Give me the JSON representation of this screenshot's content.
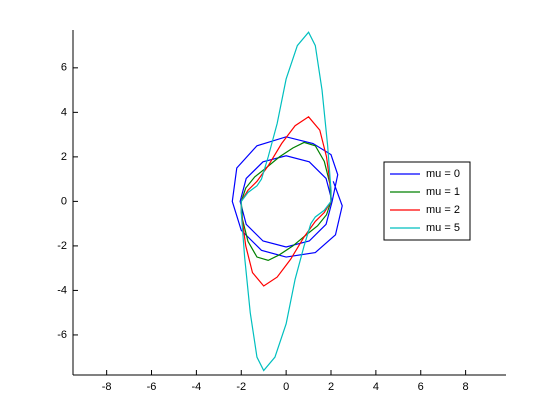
{
  "chart_data": {
    "type": "line",
    "xlim": [
      -9.5,
      9.8
    ],
    "ylim": [
      -7.8,
      7.7
    ],
    "xticks": [
      -8,
      -6,
      -4,
      -2,
      0,
      2,
      4,
      6,
      8
    ],
    "yticks": [
      -6,
      -4,
      -2,
      0,
      2,
      4,
      6
    ],
    "legend": "right",
    "series": [
      {
        "name": "mu = 0",
        "color": "#0000ff",
        "x": [
          2.05,
          1.78,
          1.03,
          0,
          -1.03,
          -1.78,
          -2.05,
          -1.78,
          -1.03,
          0,
          1.03,
          1.78,
          2.05,
          2.3,
          2,
          1.2,
          0,
          -1.3,
          -2.2,
          -2.4,
          -2,
          -1.1,
          0,
          1.3,
          2.2,
          2.5,
          2.1
        ],
        "values": [
          0,
          1.03,
          1.78,
          2.05,
          1.78,
          1.03,
          0,
          -1.03,
          -1.78,
          -2.05,
          -1.78,
          -1.03,
          0,
          1.2,
          2.1,
          2.6,
          2.9,
          2.5,
          1.5,
          0,
          -1.3,
          -2.2,
          -2.5,
          -2.3,
          -1.5,
          -0.2,
          0.9
        ]
      },
      {
        "name": "mu = 1",
        "color": "#008000",
        "x": [
          2,
          1.8,
          1.4,
          0.9,
          0.3,
          -0.3,
          -0.8,
          -1.3,
          -1.7,
          -1.95,
          -2,
          -1.8,
          -1.4,
          -0.9,
          -0.3,
          0.3,
          0.8,
          1.3,
          1.7,
          1.95,
          2
        ],
        "values": [
          0,
          -0.6,
          -1.1,
          -1.5,
          -2,
          -2.4,
          -2.65,
          -2.5,
          -1.8,
          -0.8,
          0,
          0.6,
          1.1,
          1.5,
          2,
          2.4,
          2.65,
          2.5,
          1.8,
          0.8,
          0
        ]
      },
      {
        "name": "mu = 2",
        "color": "#ff0000",
        "x": [
          2,
          1.7,
          1.3,
          0.8,
          0.2,
          -0.4,
          -1,
          -1.5,
          -1.8,
          -2,
          -2,
          -1.7,
          -1.3,
          -0.8,
          -0.2,
          0.4,
          1,
          1.5,
          1.8,
          2,
          2
        ],
        "values": [
          0,
          -0.5,
          -0.9,
          -1.6,
          -2.6,
          -3.4,
          -3.8,
          -3.2,
          -2,
          -0.5,
          0,
          0.5,
          0.9,
          1.6,
          2.6,
          3.4,
          3.8,
          3.2,
          2,
          0.5,
          0
        ]
      },
      {
        "name": "mu = 5",
        "color": "#00bfbf",
        "x": [
          2,
          1.7,
          1.3,
          1.1,
          0.8,
          0.4,
          0,
          -0.5,
          -1,
          -1.3,
          -1.6,
          -1.85,
          -2,
          -2,
          -1.7,
          -1.3,
          -1.1,
          -0.8,
          -0.4,
          0,
          0.5,
          1,
          1.3,
          1.6,
          1.85,
          2,
          2
        ],
        "values": [
          0,
          -0.4,
          -0.7,
          -1,
          -2,
          -3.5,
          -5.5,
          -7,
          -7.6,
          -7,
          -5,
          -2.5,
          -0.5,
          0,
          0.4,
          0.7,
          1,
          2,
          3.5,
          5.5,
          7,
          7.6,
          7,
          5,
          2.5,
          0.5,
          0
        ]
      }
    ]
  }
}
